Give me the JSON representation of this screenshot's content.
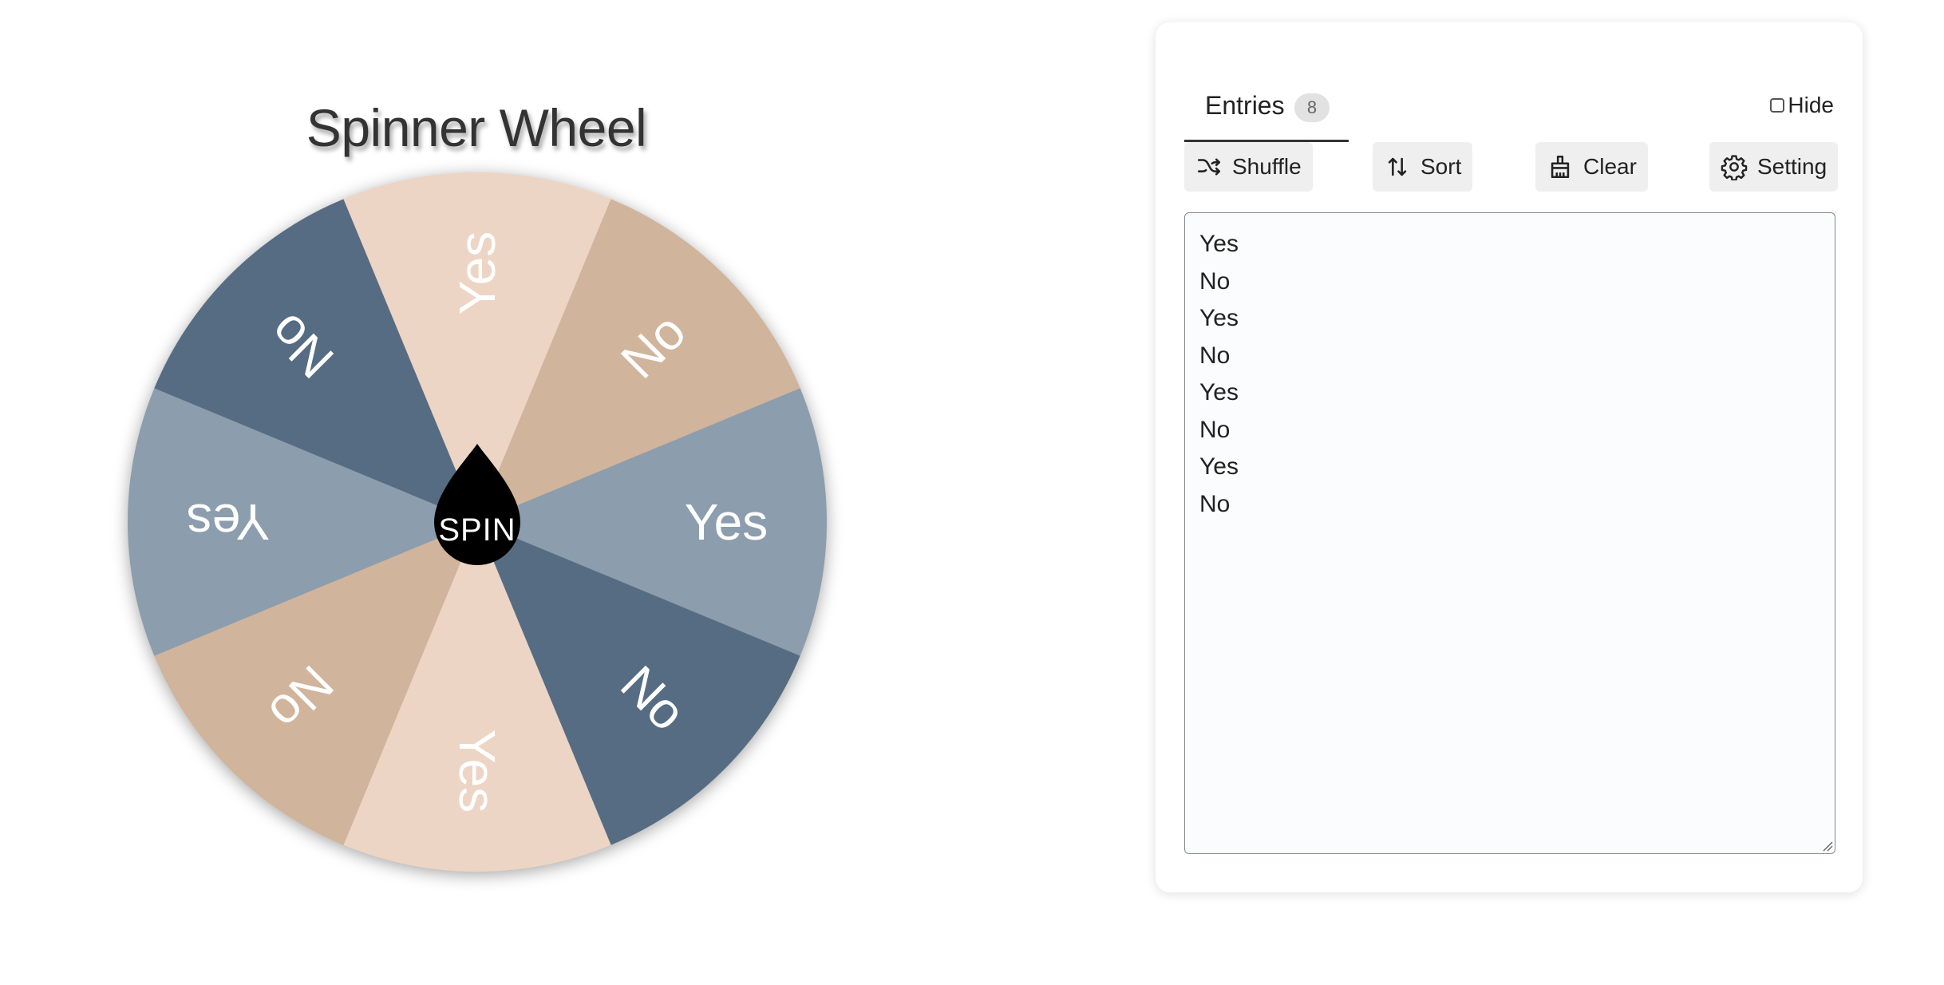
{
  "wheel": {
    "title": "Spinner Wheel",
    "spin_label": "SPIN",
    "segments": [
      {
        "label": "Yes",
        "color": "#edd5c5"
      },
      {
        "label": "No",
        "color": "#d0b49b"
      },
      {
        "label": "Yes",
        "color": "#8c9dad"
      },
      {
        "label": "No",
        "color": "#566c83"
      },
      {
        "label": "Yes",
        "color": "#edd5c5"
      },
      {
        "label": "No",
        "color": "#d0b49b"
      },
      {
        "label": "Yes",
        "color": "#8c9dad"
      },
      {
        "label": "No",
        "color": "#566c83"
      }
    ]
  },
  "panel": {
    "tab_label": "Entries",
    "entry_count": "8",
    "hide_label": "Hide",
    "toolbar": {
      "shuffle_label": "Shuffle",
      "sort_label": "Sort",
      "clear_label": "Clear",
      "setting_label": "Setting"
    },
    "entries": [
      "Yes",
      "No",
      "Yes",
      "No",
      "Yes",
      "No",
      "Yes",
      "No"
    ]
  }
}
